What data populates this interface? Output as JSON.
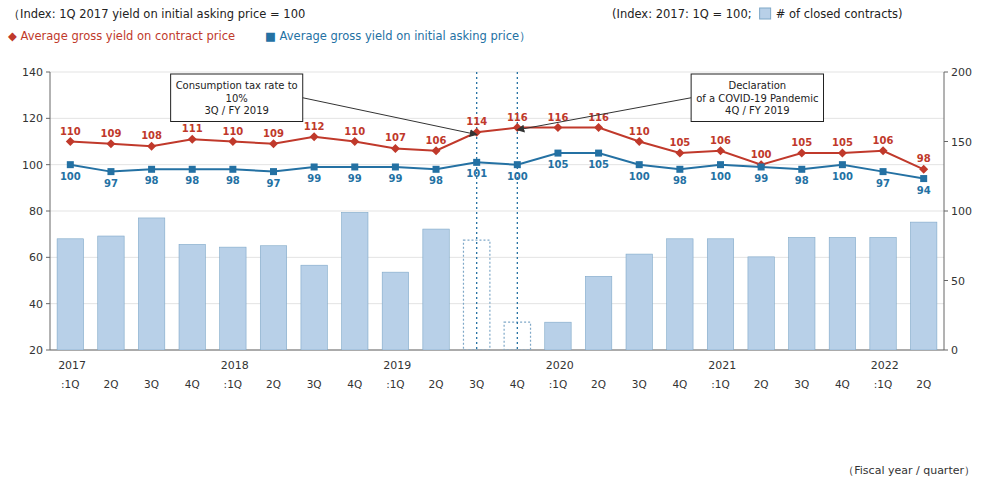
{
  "chart_data": {
    "type": "bar",
    "ylabel": "（Index: 1Q 2017 yield on initial asking price = 100",
    "y2label": "(Index: 2017: 1Q = 100;",
    "xlabel": "（Fiscal year / quarter）",
    "categories": [
      ":1Q",
      "2Q",
      "3Q",
      "4Q",
      ":1Q",
      "2Q",
      "3Q",
      "4Q",
      ":1Q",
      "2Q",
      "3Q",
      "4Q",
      ":1Q",
      "2Q",
      "3Q",
      "4Q",
      ":1Q",
      "2Q",
      "3Q",
      "4Q",
      ":1Q",
      "2Q"
    ],
    "category_groups": [
      "2017",
      null,
      null,
      null,
      "2018",
      null,
      null,
      null,
      "2019",
      null,
      null,
      null,
      "2020",
      null,
      null,
      null,
      "2021",
      null,
      null,
      null,
      "2022",
      null
    ],
    "series": [
      {
        "name": "# of closed contracts)",
        "type": "bar",
        "axis": "y2",
        "color": "#b8d0e8",
        "colors": [
          "#b8d0e8",
          "#b8d0e8",
          "#b8d0e8",
          "#b8d0e8",
          "#b8d0e8",
          "#b8d0e8",
          "#b8d0e8",
          "#b8d0e8",
          "#b8d0e8",
          "#b8d0e8",
          "none",
          "none",
          "#b8d0e8",
          "#b8d0e8",
          "#b8d0e8",
          "#b8d0e8",
          "#b8d0e8",
          "#b8d0e8",
          "#b8d0e8",
          "#b8d0e8",
          "#b8d0e8",
          "#b8d0e8"
        ],
        "values": [
          80,
          82,
          95,
          76,
          74,
          75,
          61,
          99,
          56,
          87,
          79,
          20,
          20,
          53,
          69,
          80,
          80,
          67,
          81,
          81,
          81,
          92
        ]
      },
      {
        "name": "◆ Average gross yield on contract price",
        "type": "line",
        "color": "#c0392b",
        "marker": "diamond",
        "data_labels": true,
        "values": [
          110,
          109,
          108,
          111,
          110,
          109,
          112,
          110,
          107,
          106,
          114,
          116,
          116,
          116,
          110,
          105,
          106,
          100,
          105,
          105,
          106,
          98
        ]
      },
      {
        "name": "■ Average gross yield on initial asking price）",
        "type": "line",
        "color": "#2471a3",
        "marker": "square",
        "data_labels": true,
        "values": [
          100,
          97,
          98,
          98,
          98,
          97,
          99,
          99,
          99,
          98,
          101,
          100,
          105,
          105,
          100,
          98,
          100,
          99,
          98,
          100,
          97,
          94
        ]
      }
    ],
    "ylim": [
      20,
      140
    ],
    "yticks": [
      20,
      40,
      60,
      80,
      100,
      120,
      140
    ],
    "y2lim": [
      0,
      200
    ],
    "y2ticks": [
      0,
      50,
      100,
      150,
      200
    ],
    "grid": true,
    "annotations": [
      {
        "text": "Consumption tax rate to\n10%\n3Q / FY 2019",
        "x": 10,
        "y": 113
      },
      {
        "text": "Declaration\nof a COVID-19 Pandemic\n4Q / FY 2019",
        "x": 11,
        "y": 115
      }
    ]
  }
}
